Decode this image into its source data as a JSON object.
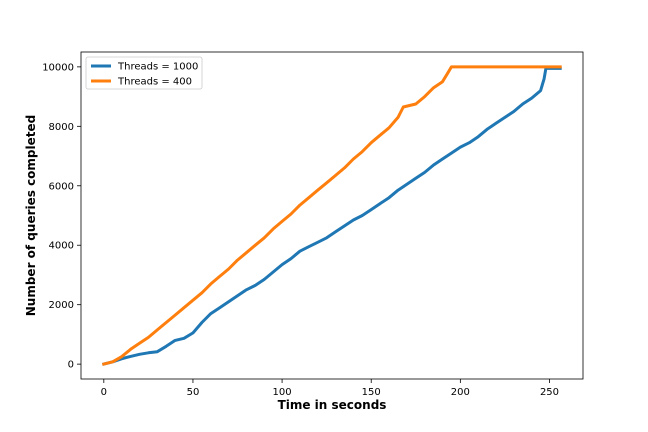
{
  "chart_data": {
    "type": "line",
    "title": "",
    "xlabel": "Time in seconds",
    "ylabel": "Number of queries completed",
    "xlim": [
      -12.8,
      268.8
    ],
    "ylim": [
      -500,
      10500
    ],
    "xticks": [
      0,
      50,
      100,
      150,
      200,
      250
    ],
    "yticks": [
      0,
      2000,
      4000,
      6000,
      8000,
      10000
    ],
    "grid": false,
    "legend_position": "top-left",
    "series": [
      {
        "name": "Threads = 1000",
        "color": "#1f77b4",
        "x": [
          0,
          5,
          10,
          15,
          20,
          25,
          30,
          35,
          40,
          45,
          50,
          55,
          60,
          65,
          70,
          75,
          80,
          85,
          90,
          95,
          100,
          105,
          110,
          115,
          120,
          125,
          130,
          135,
          140,
          145,
          150,
          155,
          160,
          165,
          170,
          175,
          180,
          185,
          190,
          195,
          200,
          205,
          210,
          215,
          220,
          225,
          230,
          235,
          240,
          245,
          247,
          248,
          256
        ],
        "y": [
          0,
          80,
          180,
          260,
          330,
          380,
          420,
          600,
          800,
          870,
          1050,
          1400,
          1700,
          1900,
          2100,
          2300,
          2500,
          2650,
          2850,
          3100,
          3350,
          3550,
          3800,
          3950,
          4100,
          4250,
          4450,
          4650,
          4850,
          5000,
          5200,
          5400,
          5600,
          5850,
          6050,
          6250,
          6450,
          6700,
          6900,
          7100,
          7300,
          7450,
          7650,
          7900,
          8100,
          8300,
          8500,
          8750,
          8950,
          9200,
          9600,
          9950,
          9950
        ]
      },
      {
        "name": "Threads = 400",
        "color": "#ff7f0e",
        "x": [
          0,
          5,
          10,
          15,
          20,
          25,
          30,
          35,
          40,
          45,
          50,
          55,
          60,
          65,
          70,
          75,
          80,
          85,
          90,
          95,
          100,
          105,
          110,
          115,
          120,
          125,
          130,
          135,
          140,
          145,
          150,
          155,
          160,
          165,
          168,
          175,
          180,
          185,
          190,
          193,
          195,
          200,
          256
        ],
        "y": [
          0,
          80,
          250,
          500,
          700,
          900,
          1150,
          1400,
          1650,
          1900,
          2150,
          2400,
          2700,
          2950,
          3200,
          3500,
          3750,
          4000,
          4250,
          4550,
          4800,
          5050,
          5350,
          5600,
          5850,
          6100,
          6350,
          6600,
          6900,
          7150,
          7450,
          7700,
          7950,
          8300,
          8650,
          8750,
          9000,
          9300,
          9500,
          9800,
          10000,
          10000,
          10000
        ]
      }
    ]
  }
}
